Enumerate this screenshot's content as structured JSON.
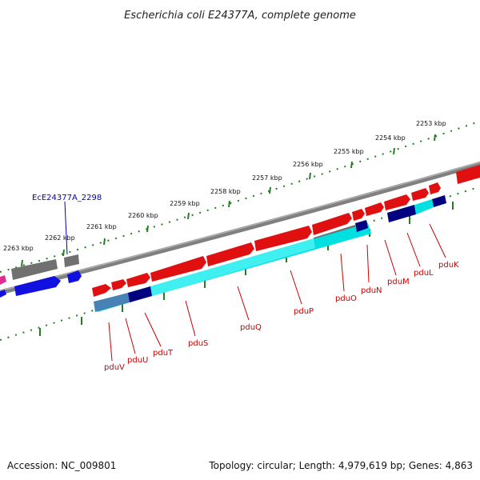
{
  "title": "Escherichia coli E24377A, complete genome",
  "footer": {
    "accession": "Accession: NC_009801",
    "summary": "Topology: circular; Length: 4,979,619 bp; Genes: 4,863"
  },
  "kbp_labels": [
    "2253 kbp",
    "2254 kbp",
    "2255 kbp",
    "2256 kbp",
    "2257 kbp",
    "2258 kbp",
    "2259 kbp",
    "2260 kbp",
    "2261 kbp",
    "2262 kbp",
    "2263 kbp"
  ],
  "gene_labels": [
    "pduK",
    "pduL",
    "pduM",
    "pduN",
    "pduO",
    "pduP",
    "pduQ",
    "pduS",
    "pduT",
    "pduU",
    "pduV"
  ],
  "locus_label": "EcE24377A_2298",
  "colors": {
    "cds": "#e01010",
    "gene": "#00e0e0",
    "misc": "#1010e0",
    "pseudo": "#707070",
    "ticks": "#208020",
    "backbone": "#808080",
    "label": "#cc0000"
  }
}
